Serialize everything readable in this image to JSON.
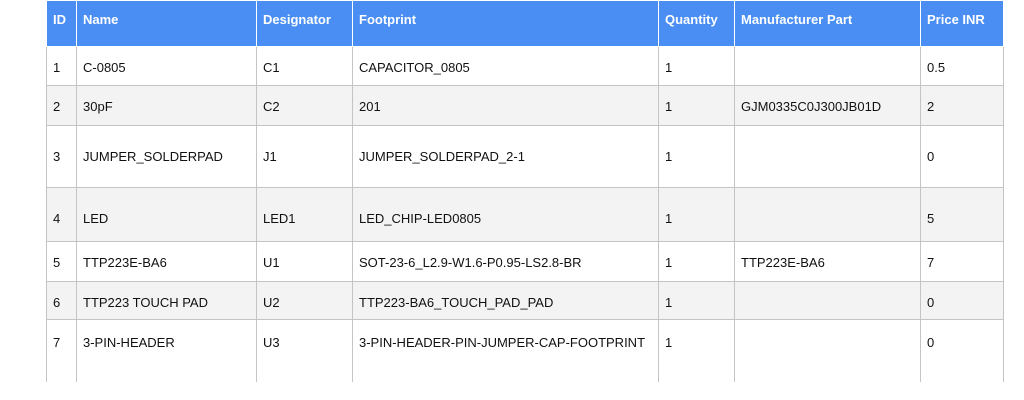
{
  "table": {
    "columns": [
      "ID",
      "Name",
      "Designator",
      "Footprint",
      "Quantity",
      "Manufacturer Part",
      "Price INR"
    ],
    "rows": [
      [
        1,
        "C-0805",
        "C1",
        "CAPACITOR_0805",
        1,
        null,
        0.5
      ],
      [
        2,
        "30pF",
        "C2",
        "201",
        1,
        "GJM0335C0J300JB01D",
        2
      ],
      [
        3,
        "JUMPER_SOLDERPAD",
        "J1",
        "JUMPER_SOLDERPAD_2-1",
        1,
        null,
        0
      ],
      [
        4,
        "LED",
        "LED1",
        "LED_CHIP-LED0805",
        1,
        null,
        5
      ],
      [
        5,
        "TTP223E-BA6",
        "U1",
        "SOT-23-6_L2.9-W1.6-P0.95-LS2.8-BR",
        1,
        "TTP223E-BA6",
        7
      ],
      [
        6,
        "TTP223 TOUCH PAD",
        "U2",
        "TTP223-BA6_TOUCH_PAD_PAD",
        1,
        null,
        0
      ],
      [
        7,
        "3-PIN-HEADER",
        "U3",
        "3-PIN-HEADER-PIN-JUMPER-CAP-FOOTPRINT",
        1,
        null,
        0
      ]
    ]
  }
}
